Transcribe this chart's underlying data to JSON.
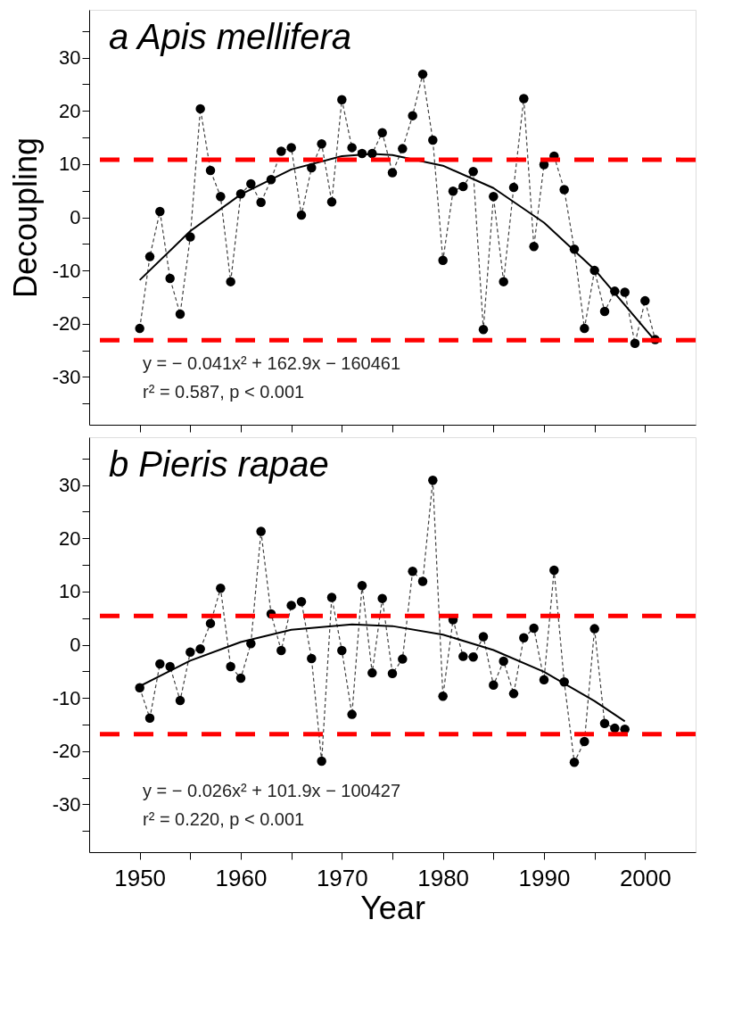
{
  "chart_data": [
    {
      "type": "line",
      "title": "a Apis mellifera",
      "ylabel": "Decoupling",
      "xlim": [
        1945,
        2005
      ],
      "ylim": [
        -39,
        39
      ],
      "xticks": [
        1950,
        {
          "value": 1955,
          "label": null
        },
        1960,
        {
          "value": 1965,
          "label": null
        },
        1970,
        {
          "value": 1975,
          "label": null
        },
        1980,
        {
          "value": 1985,
          "label": null
        },
        1990,
        {
          "value": 1995,
          "label": null
        },
        2000
      ],
      "yticks": [
        {
          "value": -35,
          "label": null
        },
        -30,
        {
          "value": -25,
          "label": null
        },
        -20,
        {
          "value": -15,
          "label": null
        },
        -10,
        {
          "value": -5,
          "label": null
        },
        0,
        {
          "value": 5,
          "label": null
        },
        10,
        {
          "value": 15,
          "label": null
        },
        20,
        {
          "value": 25,
          "label": null
        },
        30,
        {
          "value": 35,
          "label": null
        }
      ],
      "tick_labels": "y",
      "grid": false,
      "series": [
        {
          "color": "#000000",
          "marker": "circle",
          "line_style": "dashed",
          "x": [
            1950,
            1951,
            1952,
            1953,
            1954,
            1955,
            1956,
            1957,
            1958,
            1959,
            1960,
            1961,
            1962,
            1963,
            1964,
            1965,
            1966,
            1967,
            1968,
            1969,
            1970,
            1971,
            1972,
            1973,
            1974,
            1975,
            1976,
            1977,
            1978,
            1979,
            1980,
            1981,
            1982,
            1983,
            1984,
            1985,
            1986,
            1987,
            1988,
            1989,
            1990,
            1991,
            1992,
            1993,
            1994,
            1995,
            1996,
            1997,
            1998,
            1999,
            2000,
            2001
          ],
          "values": [
            -20.9,
            -7.4,
            1.1,
            -11.5,
            -18.2,
            -3.7,
            20.4,
            8.8,
            3.9,
            -12.1,
            4.4,
            6.3,
            2.8,
            7.1,
            12.4,
            13.1,
            0.4,
            9.3,
            13.8,
            2.9,
            22.1,
            13.1,
            12.0,
            12.0,
            15.9,
            8.4,
            12.9,
            19.1,
            26.9,
            14.5,
            -8.1,
            4.9,
            5.8,
            8.6,
            -21.1,
            3.9,
            -12.1,
            5.6,
            22.3,
            -5.5,
            9.9,
            11.5,
            5.2,
            -6.0,
            -20.9,
            -10.0,
            -17.7,
            -13.9,
            -14.1,
            -23.7,
            -15.7,
            -23.0
          ]
        },
        {
          "color": "#000000",
          "marker": "none",
          "line_style": "solid",
          "x": [
            1950,
            1955,
            1960,
            1965,
            1970,
            1973,
            1975,
            1980,
            1985,
            1990,
            1995,
            2001
          ],
          "values": [
            -11.8,
            -2.6,
            4.3,
            9.0,
            11.5,
            11.9,
            11.7,
            9.7,
            5.5,
            -1.0,
            -9.8,
            -23.2
          ]
        }
      ],
      "ref_lines": [
        {
          "axis": "y",
          "value": 10.8,
          "color": "#ff0000",
          "line_style": "dashed"
        },
        {
          "axis": "y",
          "value": -23.1,
          "color": "#ff0000",
          "line_style": "dashed"
        }
      ],
      "annotations": [
        "y = − 0.041x² + 162.9x − 160461",
        "r² = 0.587,   p < 0.001"
      ]
    },
    {
      "type": "line",
      "title": "b Pieris rapae",
      "xlabel": "Year",
      "xlim": [
        1945,
        2005
      ],
      "ylim": [
        -39,
        39
      ],
      "xticks": [
        1950,
        {
          "value": 1955,
          "label": null
        },
        1960,
        {
          "value": 1965,
          "label": null
        },
        1970,
        {
          "value": 1975,
          "label": null
        },
        1980,
        {
          "value": 1985,
          "label": null
        },
        1990,
        {
          "value": 1995,
          "label": null
        },
        2000
      ],
      "yticks": [
        {
          "value": -35,
          "label": null
        },
        -30,
        {
          "value": -25,
          "label": null
        },
        -20,
        {
          "value": -15,
          "label": null
        },
        -10,
        {
          "value": -5,
          "label": null
        },
        0,
        {
          "value": 5,
          "label": null
        },
        10,
        {
          "value": 15,
          "label": null
        },
        20,
        {
          "value": 25,
          "label": null
        },
        30,
        {
          "value": 35,
          "label": null
        }
      ],
      "grid": false,
      "series": [
        {
          "color": "#000000",
          "marker": "circle",
          "line_style": "dashed",
          "x": [
            1950,
            1951,
            1952,
            1953,
            1954,
            1955,
            1956,
            1957,
            1958,
            1959,
            1960,
            1961,
            1962,
            1963,
            1964,
            1965,
            1966,
            1967,
            1968,
            1969,
            1970,
            1971,
            1972,
            1973,
            1974,
            1975,
            1976,
            1977,
            1978,
            1979,
            1980,
            1981,
            1982,
            1983,
            1984,
            1985,
            1986,
            1987,
            1988,
            1989,
            1990,
            1991,
            1992,
            1993,
            1994,
            1995,
            1996,
            1997,
            1998
          ],
          "values": [
            -8.1,
            -13.8,
            -3.6,
            -4.1,
            -10.5,
            -1.4,
            -0.8,
            4.0,
            10.6,
            -4.1,
            -6.3,
            0.2,
            21.3,
            5.8,
            -1.1,
            7.4,
            8.1,
            -2.6,
            -21.9,
            8.9,
            -1.1,
            -13.1,
            11.1,
            -5.3,
            8.7,
            -5.4,
            -2.7,
            13.8,
            11.9,
            30.9,
            -9.7,
            4.7,
            -2.2,
            -2.3,
            1.5,
            -7.6,
            -3.1,
            -9.2,
            1.3,
            3.1,
            -6.6,
            14.0,
            -7.0,
            -22.1,
            -18.2,
            3.0,
            -14.8,
            -15.7,
            -15.9
          ]
        },
        {
          "color": "#000000",
          "marker": "none",
          "line_style": "solid",
          "x": [
            1950,
            1955,
            1960,
            1965,
            1971,
            1975,
            1980,
            1985,
            1990,
            1995,
            1998
          ],
          "values": [
            -7.8,
            -3.0,
            0.5,
            2.8,
            3.8,
            3.5,
            1.9,
            -1.0,
            -5.1,
            -10.6,
            -14.4
          ]
        }
      ],
      "ref_lines": [
        {
          "axis": "y",
          "value": 5.4,
          "color": "#ff0000",
          "line_style": "dashed"
        },
        {
          "axis": "y",
          "value": -16.8,
          "color": "#ff0000",
          "line_style": "dashed"
        }
      ],
      "annotations": [
        "y = − 0.026x² + 101.9x − 100427",
        "r² = 0.220,   p < 0.001"
      ]
    }
  ]
}
